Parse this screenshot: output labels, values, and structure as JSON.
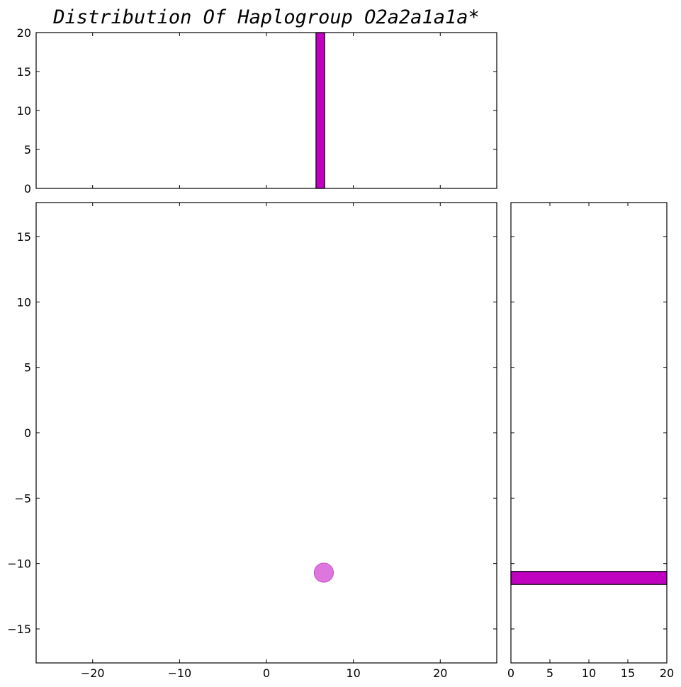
{
  "chart_data": {
    "type": "scatter",
    "title": "Distribution Of Haplogroup O2a2a1a1a*",
    "colors": {
      "accent": "#bf00bf",
      "scatter_fill": "#dd77dd",
      "scatter_edge": "#cc55cc",
      "axis": "#000000"
    },
    "scatter": {
      "xlim": [
        -26.5,
        26.5
      ],
      "ylim": [
        -17.6,
        17.6
      ],
      "xticks": [
        -20,
        -10,
        0,
        10,
        20
      ],
      "yticks": [
        15,
        10,
        5,
        0,
        -5,
        -10,
        -15
      ],
      "points": [
        {
          "x": 6.6,
          "y": -10.7
        }
      ]
    },
    "x_histogram": {
      "xlim": [
        -26.5,
        26.5
      ],
      "ylim": [
        0,
        20
      ],
      "yticks": [
        0,
        5,
        10,
        15,
        20
      ],
      "bins": [
        {
          "start": 5.7,
          "end": 6.7,
          "count": 20
        }
      ]
    },
    "y_histogram": {
      "xlim": [
        0,
        20
      ],
      "ylim": [
        -17.6,
        17.6
      ],
      "xticks": [
        0,
        5,
        10,
        15,
        20
      ],
      "bins": [
        {
          "start": -11.6,
          "end": -10.6,
          "count": 20
        }
      ]
    }
  }
}
